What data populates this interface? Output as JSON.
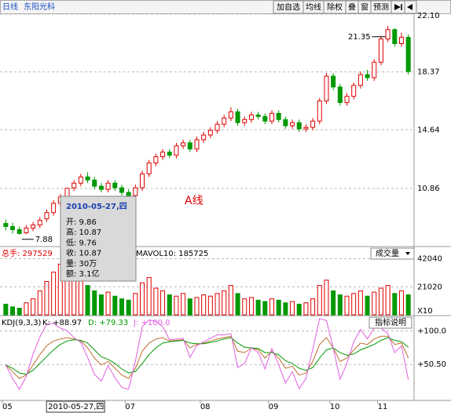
{
  "toolbar": {
    "period": "日线",
    "stock": "东阳光科",
    "buttons": [
      "加自选",
      "均线",
      "除权",
      "叠",
      "窗",
      "预测"
    ]
  },
  "chart_data": [
    {
      "type": "candlestick",
      "categories": [
        "05",
        null,
        null,
        null,
        null,
        null,
        null,
        null,
        null,
        "2010-05-27,四",
        null,
        null,
        null,
        null,
        null,
        null,
        null,
        null,
        "07",
        null,
        null,
        null,
        null,
        null,
        null,
        null,
        null,
        null,
        null,
        "08",
        null,
        null,
        null,
        null,
        null,
        null,
        null,
        null,
        null,
        "09",
        null,
        null,
        null,
        null,
        null,
        null,
        null,
        null,
        "10",
        null,
        null,
        null,
        null,
        null,
        null,
        "11",
        null,
        null,
        null,
        null
      ],
      "open": [
        8.6,
        8.4,
        8.2,
        8.0,
        8.3,
        8.5,
        8.9,
        9.3,
        9.9,
        9.86,
        10.9,
        11.2,
        11.6,
        11.4,
        11.0,
        10.8,
        11.2,
        10.9,
        10.6,
        10.4,
        10.9,
        11.8,
        12.5,
        12.9,
        13.2,
        13.0,
        13.6,
        13.8,
        13.4,
        14.0,
        14.3,
        14.6,
        15.0,
        15.4,
        15.8,
        15.1,
        15.3,
        15.6,
        15.5,
        15.2,
        15.7,
        15.3,
        14.9,
        15.1,
        14.7,
        14.8,
        15.2,
        16.5,
        18.1,
        17.4,
        16.4,
        16.8,
        17.5,
        18.2,
        18.0,
        19.0,
        20.5,
        21.1,
        20.2,
        20.6
      ],
      "high": [
        8.85,
        8.65,
        8.4,
        8.5,
        8.7,
        9.0,
        9.5,
        10.1,
        10.5,
        10.87,
        11.4,
        11.8,
        11.9,
        11.6,
        11.2,
        11.4,
        11.4,
        11.1,
        10.8,
        11.1,
        12.0,
        12.7,
        13.1,
        13.4,
        13.4,
        13.8,
        14.0,
        14.0,
        14.2,
        14.5,
        14.8,
        15.2,
        15.6,
        16.1,
        16.0,
        15.5,
        15.8,
        15.8,
        15.7,
        15.9,
        15.9,
        15.5,
        15.3,
        15.3,
        15.0,
        15.4,
        16.7,
        18.3,
        18.3,
        17.6,
        17.0,
        17.7,
        18.4,
        18.5,
        19.2,
        20.7,
        21.35,
        21.2,
        20.9,
        20.8
      ],
      "low": [
        8.15,
        7.95,
        7.88,
        7.9,
        8.1,
        8.3,
        8.7,
        9.1,
        9.7,
        9.76,
        10.7,
        11.0,
        11.2,
        10.8,
        10.6,
        10.6,
        10.7,
        10.4,
        10.2,
        10.2,
        10.7,
        11.6,
        12.3,
        12.7,
        12.8,
        12.8,
        13.4,
        13.2,
        13.2,
        13.8,
        14.1,
        14.4,
        14.8,
        15.2,
        14.9,
        14.9,
        15.1,
        15.3,
        15.0,
        15.0,
        15.1,
        14.7,
        14.7,
        14.5,
        14.5,
        14.6,
        15.0,
        16.3,
        17.2,
        16.2,
        16.2,
        16.6,
        17.3,
        17.8,
        17.8,
        18.8,
        20.3,
        20.0,
        20.0,
        18.2
      ],
      "close": [
        8.4,
        8.2,
        7.95,
        8.3,
        8.5,
        8.8,
        9.3,
        9.9,
        10.3,
        10.87,
        11.2,
        11.6,
        11.4,
        11.0,
        10.8,
        11.2,
        10.9,
        10.6,
        10.4,
        10.9,
        11.8,
        12.5,
        12.9,
        13.2,
        13.0,
        13.6,
        13.8,
        13.4,
        14.0,
        14.3,
        14.6,
        15.0,
        15.4,
        15.8,
        15.1,
        15.3,
        15.6,
        15.5,
        15.2,
        15.7,
        15.3,
        14.9,
        15.1,
        14.7,
        14.8,
        15.2,
        16.5,
        18.1,
        17.4,
        16.4,
        16.8,
        17.5,
        18.2,
        18.0,
        19.0,
        20.5,
        21.1,
        20.2,
        20.6,
        18.4
      ],
      "up_color": "#e00000",
      "down_color": "#009900",
      "ylim": [
        7.16,
        22.1
      ],
      "yticks": [
        10.86,
        14.64,
        18.37,
        {
          "value": 22.1,
          "label": "22.10"
        }
      ],
      "grid": true,
      "high_label": "21.35",
      "low_label": "7.88",
      "annotation": "A线",
      "tooltip": {
        "date": "2010-05-27,四",
        "rows": [
          "开: 9.86",
          "高: 10.87",
          "低: 9.76",
          "收: 10.87",
          "量: 30万",
          "额: 3.1亿"
        ]
      }
    },
    {
      "type": "bar",
      "title": "总手: 297529",
      "ma_label": "MAVOL10: 185725",
      "selector": "成交量",
      "unit_label": "X10",
      "values": [
        8000,
        6000,
        5000,
        9000,
        12000,
        18000,
        25000,
        32000,
        38000,
        30000,
        26000,
        28000,
        22000,
        18000,
        15000,
        17000,
        14000,
        12000,
        11000,
        16000,
        24000,
        28000,
        20000,
        18000,
        15000,
        14000,
        16000,
        12000,
        13000,
        15000,
        14000,
        16000,
        18000,
        22000,
        16000,
        12000,
        13000,
        11000,
        10000,
        12000,
        11000,
        9000,
        10000,
        8000,
        9000,
        12000,
        22000,
        26000,
        18000,
        15000,
        14000,
        16000,
        18000,
        14000,
        17000,
        20000,
        22000,
        16000,
        18000,
        15000
      ],
      "ylim": [
        0,
        50000
      ],
      "yticks": [
        21020,
        42040
      ],
      "grid": true
    },
    {
      "type": "line",
      "title": "KDJ(9,3,3)",
      "button": "指标说明",
      "series": [
        {
          "name": "K: +88.97",
          "color": "#c07030",
          "values": [
            50,
            40,
            30,
            35,
            50,
            65,
            78,
            85,
            88,
            90,
            88,
            85,
            75,
            60,
            50,
            55,
            45,
            35,
            30,
            45,
            70,
            82,
            88,
            90,
            85,
            86,
            87,
            75,
            80,
            82,
            85,
            88,
            90,
            92,
            70,
            68,
            75,
            72,
            60,
            70,
            60,
            45,
            48,
            35,
            38,
            55,
            80,
            90,
            75,
            55,
            60,
            72,
            82,
            80,
            88,
            92,
            92,
            80,
            82,
            60
          ]
        },
        {
          "name": "D: +79.33",
          "color": "#009900",
          "values": [
            50,
            45,
            38,
            36,
            42,
            52,
            62,
            72,
            80,
            85,
            87,
            86,
            82,
            72,
            62,
            58,
            52,
            44,
            38,
            40,
            52,
            65,
            75,
            82,
            84,
            85,
            86,
            82,
            81,
            81,
            83,
            85,
            88,
            90,
            82,
            76,
            75,
            74,
            68,
            68,
            65,
            56,
            52,
            45,
            42,
            46,
            60,
            72,
            75,
            68,
            64,
            66,
            72,
            76,
            80,
            86,
            90,
            86,
            84,
            76
          ]
        },
        {
          "name": "J: +100.0",
          "color": "#e060e0",
          "values": [
            50,
            30,
            14,
            33,
            66,
            91,
            110,
            111,
            104,
            100,
            90,
            83,
            61,
            36,
            26,
            49,
            31,
            17,
            14,
            55,
            106,
            116,
            114,
            106,
            87,
            88,
            89,
            61,
            78,
            84,
            89,
            94,
            94,
            96,
            46,
            52,
            75,
            68,
            44,
            74,
            50,
            23,
            40,
            15,
            30,
            73,
            118,
            115,
            75,
            29,
            52,
            84,
            102,
            88,
            104,
            104,
            96,
            68,
            78,
            28
          ]
        }
      ],
      "ylim": [
        0,
        120
      ],
      "yticks": [
        {
          "value": 100,
          "label": "+100.0"
        },
        {
          "value": 50.5,
          "label": "+50.50"
        }
      ],
      "grid": true
    }
  ]
}
